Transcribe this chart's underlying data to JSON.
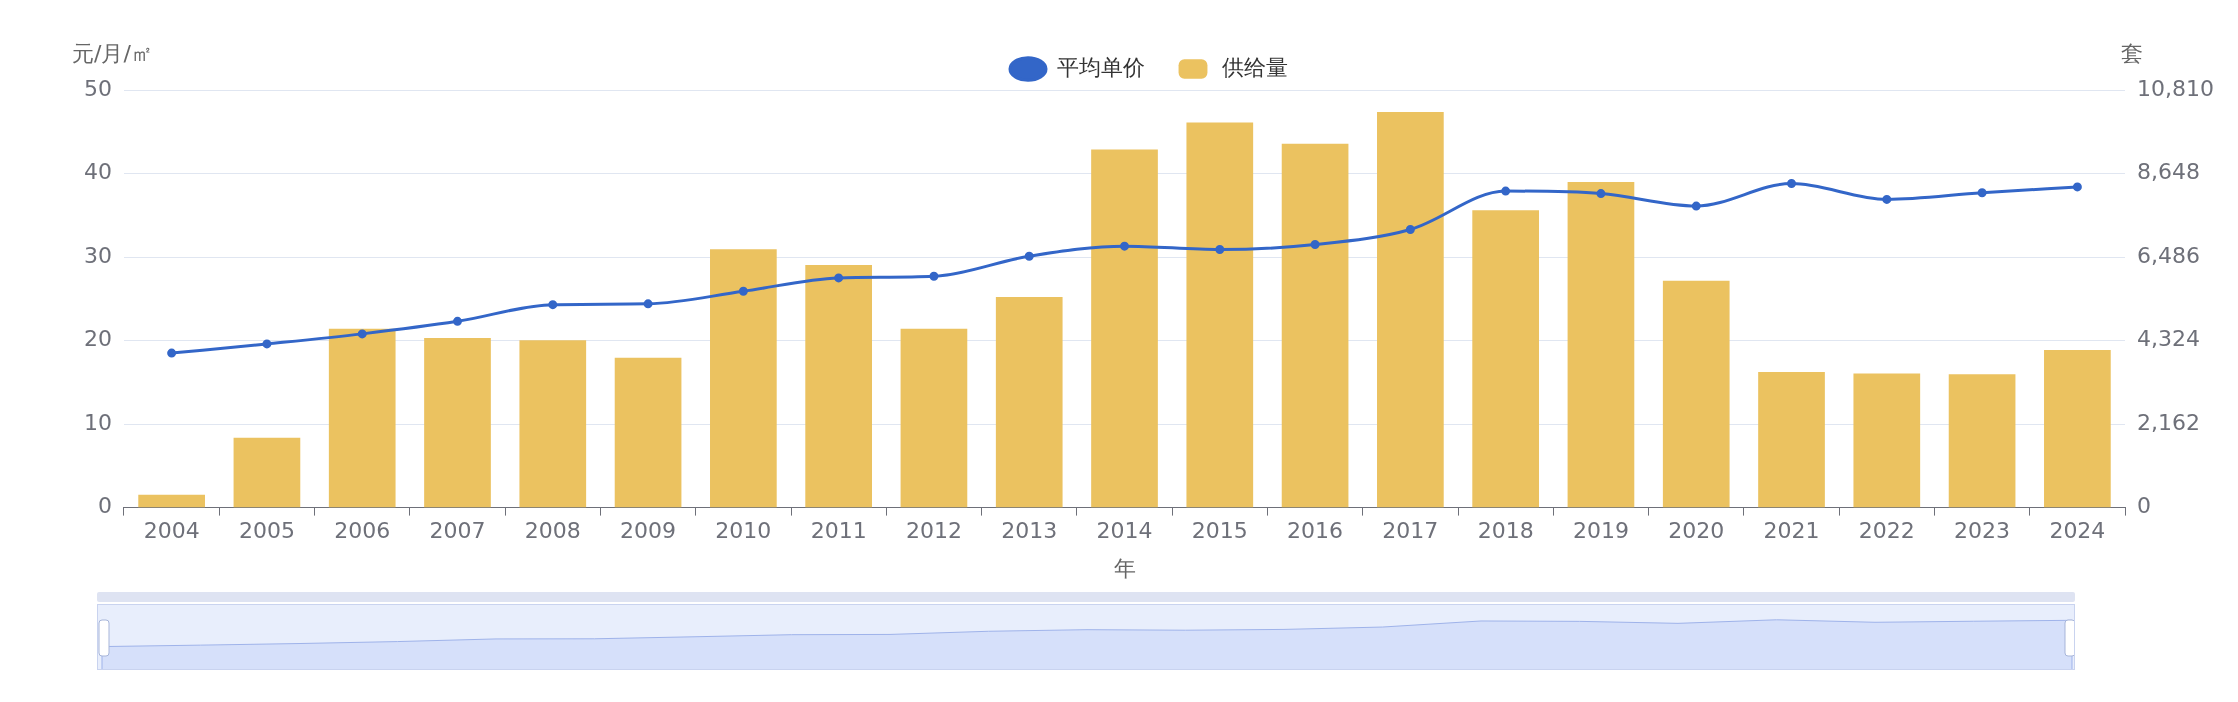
{
  "chart_data": {
    "type": "bar",
    "xlabel": "年",
    "ylabel": "元/月/㎡",
    "y2label": "套",
    "categories": [
      "2004",
      "2005",
      "2006",
      "2007",
      "2008",
      "2009",
      "2010",
      "2011",
      "2012",
      "2013",
      "2014",
      "2015",
      "2016",
      "2017",
      "2018",
      "2019",
      "2020",
      "2021",
      "2022",
      "2023",
      "2024"
    ],
    "series": [
      {
        "name": "平均单价",
        "type": "line",
        "color": "#3366c8",
        "values": [
          18.5,
          19.6,
          20.8,
          22.3,
          24.3,
          24.4,
          25.9,
          27.5,
          27.7,
          30.1,
          31.3,
          30.9,
          31.5,
          33.3,
          37.9,
          37.6,
          36.1,
          38.8,
          36.9,
          37.7,
          38.4
        ]
      },
      {
        "name": "供给量",
        "axis": "y2",
        "color": "#ebc260",
        "values": [
          330,
          1810,
          4630,
          4390,
          4330,
          3880,
          6690,
          6280,
          4630,
          5450,
          9270,
          9970,
          9420,
          10240,
          7700,
          8430,
          5870,
          3510,
          3470,
          3450,
          4080
        ]
      }
    ],
    "ylim": [
      0,
      50
    ],
    "yticks": [
      0,
      10,
      20,
      30,
      40,
      50
    ],
    "y2lim": [
      0,
      10810
    ],
    "y2ticks": [
      0,
      {
        "value": 2162,
        "label": "2,162"
      },
      {
        "value": 4324,
        "label": "4,324"
      },
      {
        "value": 6486,
        "label": "6,486"
      },
      {
        "value": 8648,
        "label": "8,648"
      },
      {
        "value": 10810,
        "label": "10,810"
      }
    ],
    "grid": "y",
    "legend": "top",
    "marker": "circle"
  }
}
